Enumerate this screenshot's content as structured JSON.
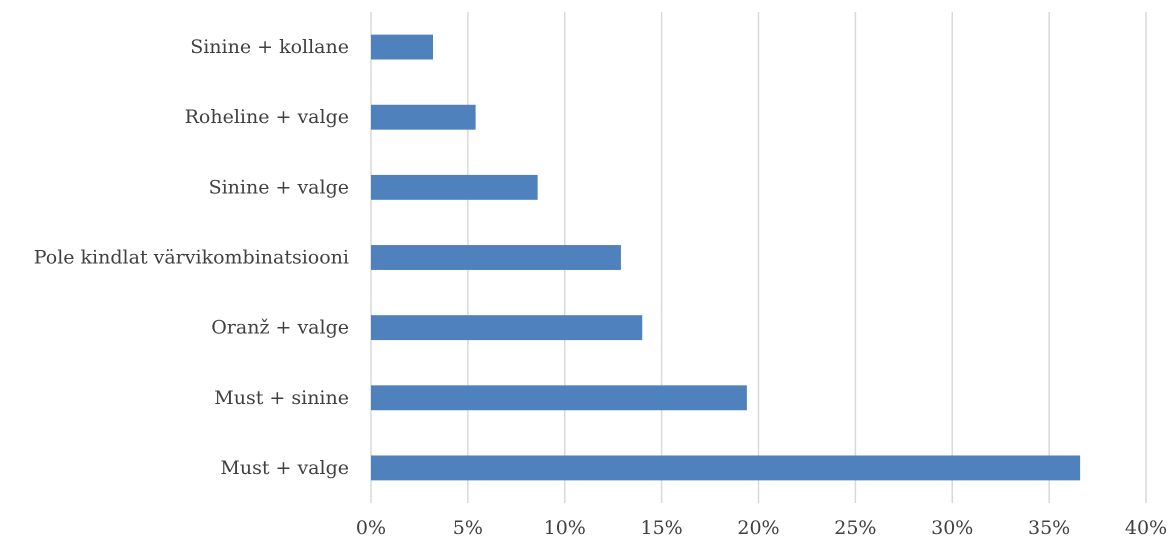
{
  "chart_data": {
    "type": "bar",
    "orientation": "horizontal",
    "title": "",
    "xlabel": "",
    "ylabel": "",
    "categories": [
      "Sinine + kollane",
      "Roheline + valge",
      "Sinine + valge",
      "Pole kindlat värvikombinatsiooni",
      "Oranž + valge",
      "Must + sinine",
      "Must + valge"
    ],
    "values": [
      3.2,
      5.4,
      8.6,
      12.9,
      14.0,
      19.4,
      36.6
    ],
    "value_unit": "%",
    "xlim": [
      0,
      40
    ],
    "x_ticks": [
      0,
      5,
      10,
      15,
      20,
      25,
      30,
      35,
      40
    ],
    "x_tick_labels": [
      "0%",
      "5%",
      "10%",
      "15%",
      "20%",
      "25%",
      "30%",
      "35%",
      "40%"
    ],
    "grid": "vertical",
    "legend": "none",
    "bar_color": "#4f81bd"
  }
}
